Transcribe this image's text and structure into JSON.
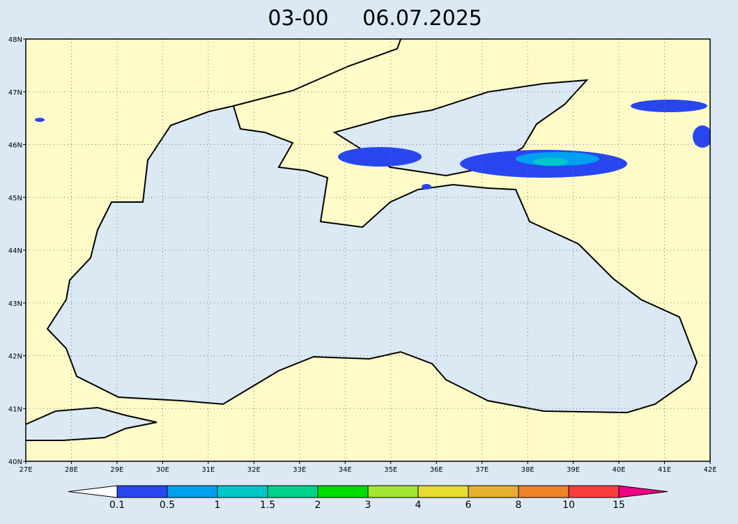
{
  "title": {
    "time": "03-00",
    "date": "06.07.2025"
  },
  "lat_labels": [
    "40N",
    "41N",
    "42N",
    "43N",
    "44N",
    "45N",
    "46N",
    "47N",
    "48N"
  ],
  "lon_labels": [
    "27E",
    "28E",
    "29E",
    "30E",
    "31E",
    "32E",
    "33E",
    "34E",
    "35E",
    "36E",
    "37E",
    "38E",
    "39E",
    "40E",
    "41E",
    "42E"
  ],
  "colorbar": {
    "labels": [
      "0.1",
      "0.5",
      "1",
      "1.5",
      "2",
      "3",
      "4",
      "6",
      "8",
      "10",
      "15"
    ],
    "colors": [
      "#ffffff",
      "#2846f0",
      "#00a0f0",
      "#00c8c8",
      "#00d28c",
      "#00dc00",
      "#a0e632",
      "#e6dc32",
      "#e6af2d",
      "#f08228",
      "#fa3c3c",
      "#f00082"
    ]
  }
}
